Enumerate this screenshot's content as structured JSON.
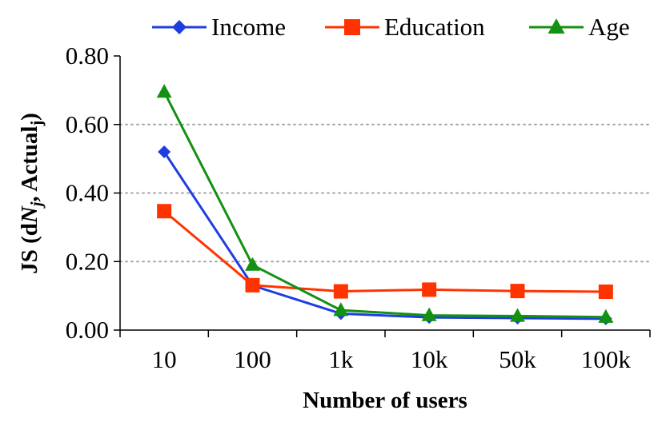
{
  "chart_data": {
    "type": "line",
    "categories": [
      "10",
      "100",
      "1k",
      "10k",
      "50k",
      "100k"
    ],
    "series": [
      {
        "name": "Income",
        "color": "#1f3ee0",
        "marker": "diamond",
        "values": [
          0.52,
          0.13,
          0.048,
          0.037,
          0.035,
          0.033
        ]
      },
      {
        "name": "Education",
        "color": "#ff3300",
        "marker": "square",
        "values": [
          0.347,
          0.131,
          0.113,
          0.118,
          0.114,
          0.112
        ]
      },
      {
        "name": "Age",
        "color": "#139113",
        "marker": "triangle",
        "values": [
          0.695,
          0.19,
          0.058,
          0.043,
          0.041,
          0.038
        ]
      }
    ],
    "xlabel": "Number of users",
    "ylabel_parts": [
      "JS (d",
      "N",
      "j",
      ", Actual",
      "j",
      ")"
    ],
    "ylim": [
      0,
      0.8
    ],
    "yticks": [
      "0.00",
      "0.20",
      "0.40",
      "0.60",
      "0.80"
    ],
    "grid": "horizontal dotted",
    "legend_position": "top"
  }
}
